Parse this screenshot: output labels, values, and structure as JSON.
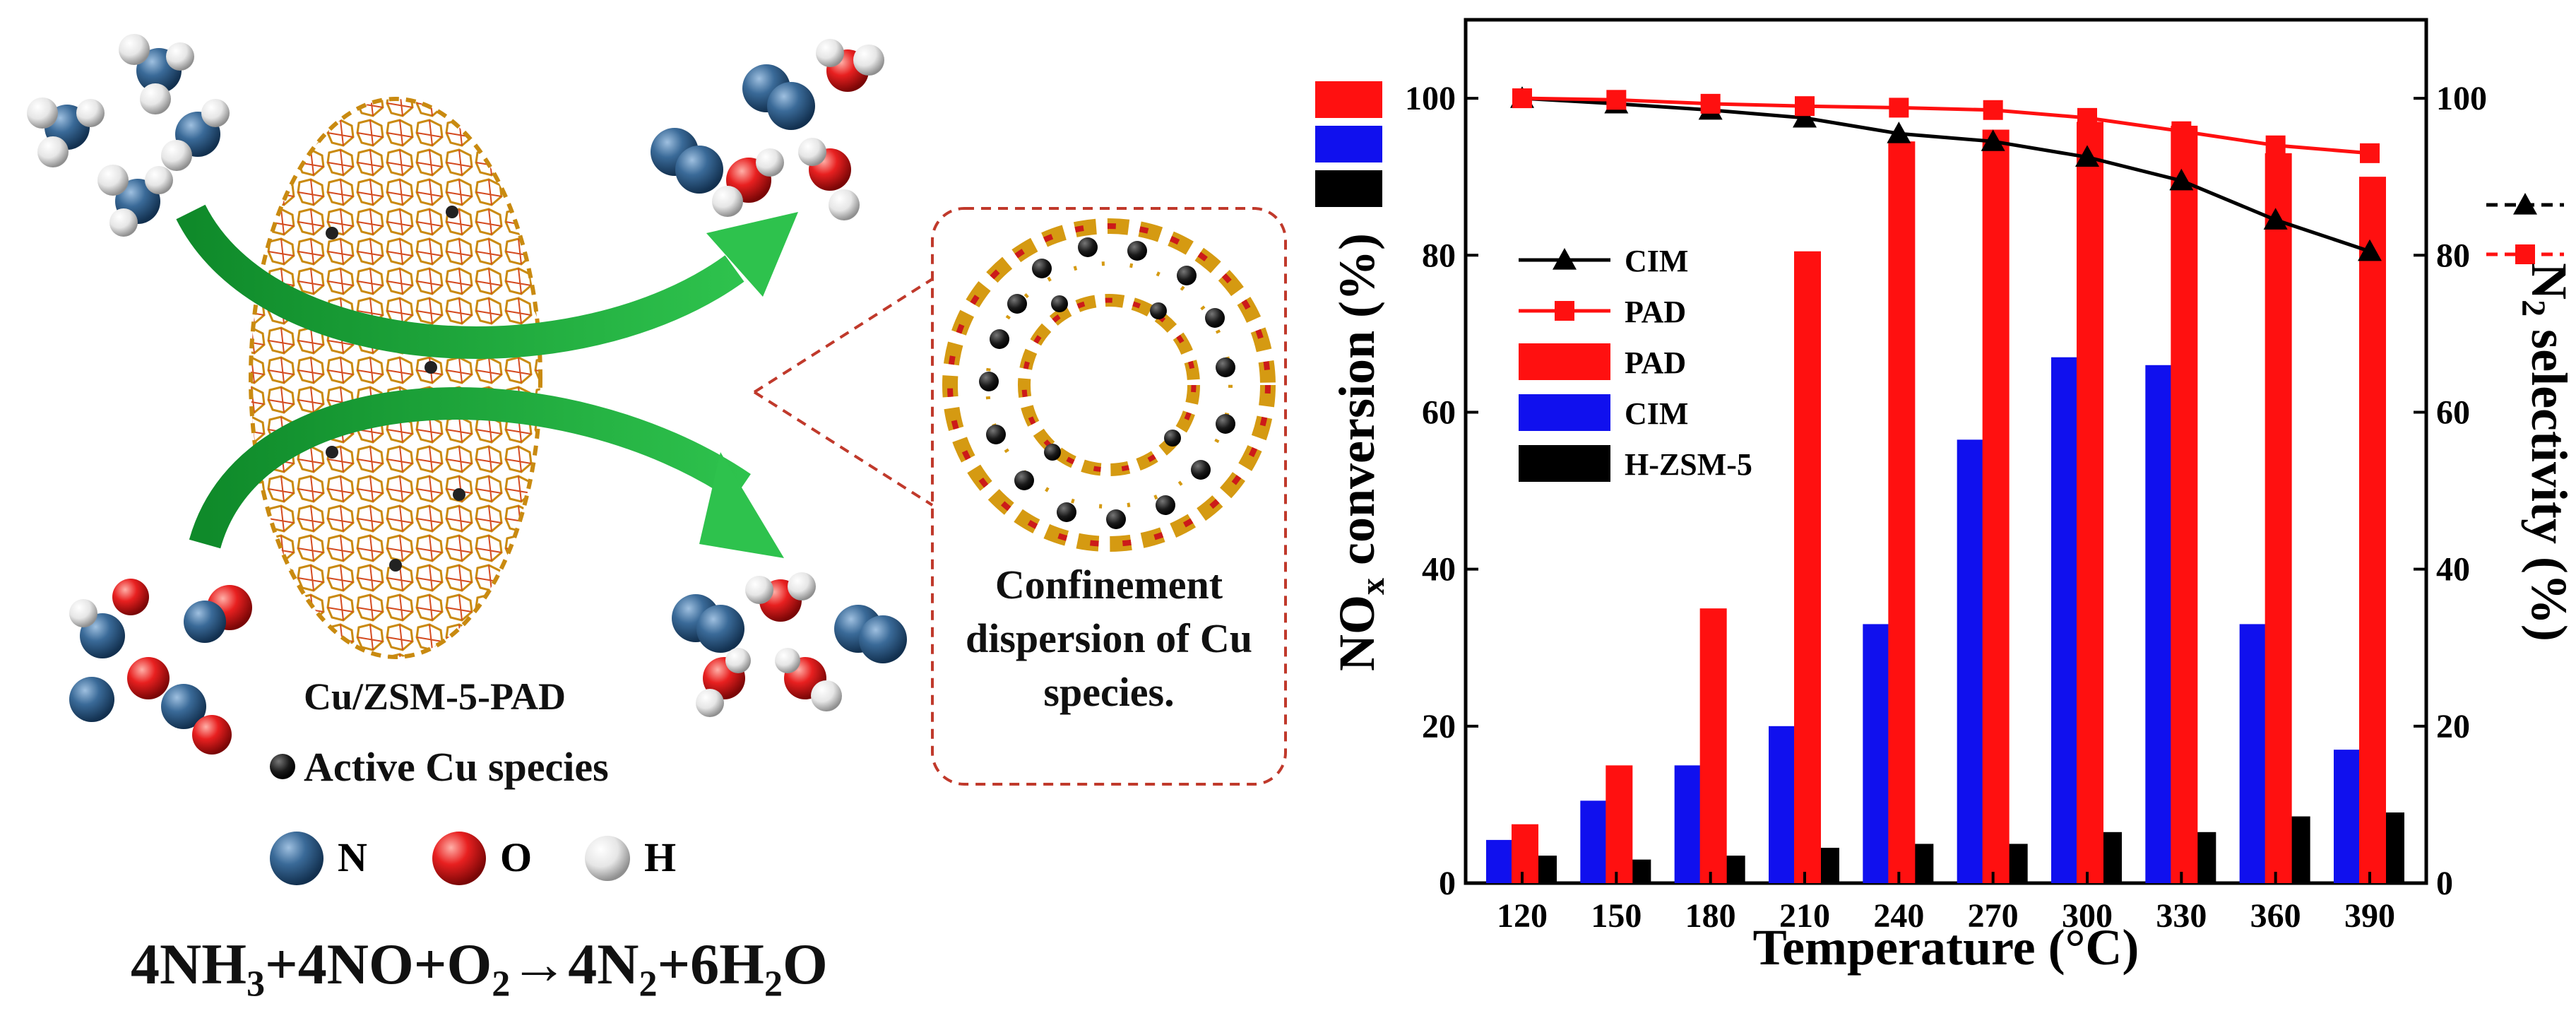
{
  "illustration": {
    "catalyst_label": "Cu/ZSM-5-PAD",
    "active_species_label": "Active Cu species",
    "atom_legend": [
      {
        "symbol": "N",
        "color": "#2d5b86"
      },
      {
        "symbol": "O",
        "color": "#e01e1e"
      },
      {
        "symbol": "H",
        "color": "#e8e8e8"
      }
    ],
    "inset_caption": "Confinement dispersion of Cu species.",
    "reaction": {
      "parts": [
        "4NH",
        "3",
        "+4NO+O",
        "2",
        "→4N",
        "2",
        "+6H",
        "2",
        "O"
      ]
    }
  },
  "chart_data": {
    "type": "bar",
    "xlabel": "Temperature (°C)",
    "ylabel_left": {
      "base": "NO",
      "sub": "x",
      "rest": " conversion (%)"
    },
    "ylabel_right": {
      "base": "N",
      "sub": "2",
      "rest": " selectivity (%)"
    },
    "categories": [
      "120",
      "150",
      "180",
      "210",
      "240",
      "270",
      "300",
      "330",
      "360",
      "390"
    ],
    "ylim": [
      0,
      110
    ],
    "y2lim": [
      0,
      110
    ],
    "yticks": [
      "0",
      "20",
      "40",
      "60",
      "80",
      "100"
    ],
    "y2ticks": [
      "0",
      "20",
      "40",
      "60",
      "80",
      "100"
    ],
    "series": [
      {
        "name": "CIM",
        "kind": "bar",
        "color": "#1010ee",
        "values": [
          5.5,
          10.5,
          15,
          20,
          33,
          56.5,
          67,
          66,
          33,
          17
        ]
      },
      {
        "name": "PAD",
        "kind": "bar",
        "color": "#ff1010",
        "values": [
          7.5,
          15,
          35,
          80.5,
          94.5,
          96,
          97,
          96.5,
          93,
          90
        ]
      },
      {
        "name": "H-ZSM-5",
        "kind": "bar",
        "color": "#000000",
        "values": [
          3.5,
          3,
          3.5,
          4.5,
          5,
          5,
          6.5,
          6.5,
          8.5,
          9
        ]
      },
      {
        "name": "CIM",
        "kind": "line",
        "axis": "right",
        "color": "#000000",
        "marker": "triangle",
        "values": [
          100,
          99.3,
          98.5,
          97.5,
          95.5,
          94.5,
          92.5,
          89.5,
          84.5,
          80.5
        ]
      },
      {
        "name": "PAD",
        "kind": "line",
        "axis": "right",
        "color": "#ff1010",
        "marker": "square",
        "values": [
          100,
          99.8,
          99.3,
          99,
          98.8,
          98.5,
          97.5,
          95.8,
          94,
          93
        ]
      }
    ],
    "legend": [
      {
        "label": "CIM",
        "kind": "line",
        "color": "#000000",
        "marker": "triangle"
      },
      {
        "label": "PAD",
        "kind": "line",
        "color": "#ff1010",
        "marker": "square"
      },
      {
        "label": "PAD",
        "kind": "bar",
        "color": "#ff1010"
      },
      {
        "label": "CIM",
        "kind": "bar",
        "color": "#1010ee"
      },
      {
        "label": "H-ZSM-5",
        "kind": "bar",
        "color": "#000000"
      }
    ]
  }
}
